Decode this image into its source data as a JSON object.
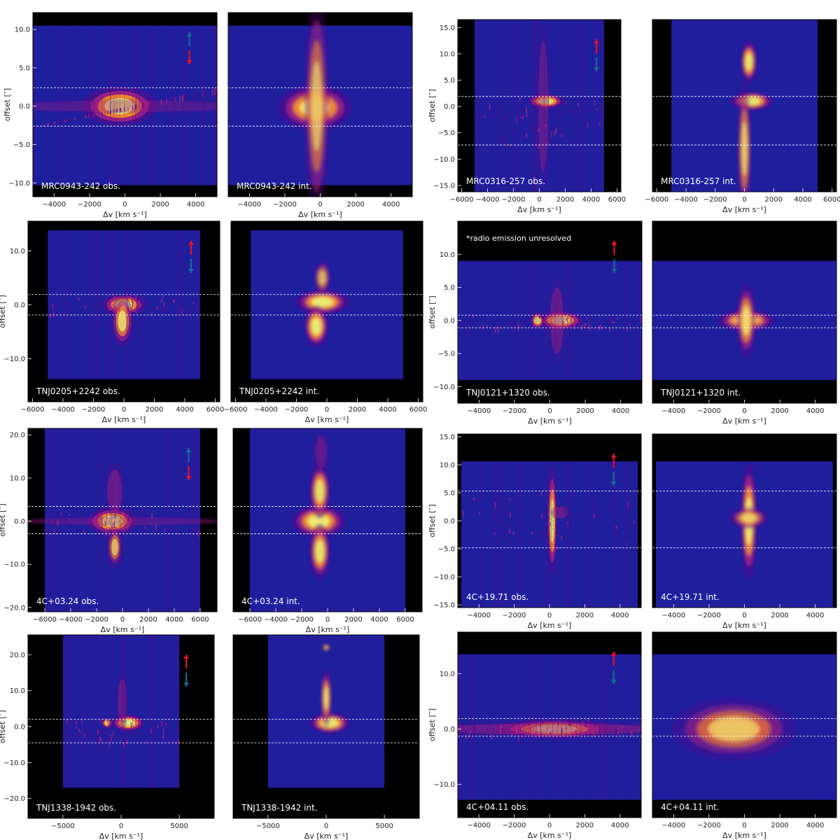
{
  "colors": {
    "background": "#000000",
    "cube": "#1f1f9e",
    "dim": "#5a0a8a",
    "mid": "#c0267a",
    "bright": "#ff9a1a",
    "peak": "#f4f47a",
    "contour": "#70c060",
    "aperture": "#ffffff",
    "arrow_red": "#e3102b",
    "arrow_blue": "#136a99"
  },
  "tick_labels": {
    "xlabel": "Δv [km s⁻¹]",
    "ylabel": "offset [″]"
  },
  "chart_data": [
    {
      "type": "heatmap",
      "panel": "obs",
      "label": "MRC0943-242 obs.",
      "xlabel": "Δv [km s⁻¹]",
      "ylabel": "offset [″]",
      "xlim": [
        -5200,
        5200
      ],
      "ylim": [
        -11.8,
        12.2
      ],
      "xticks": [
        -4000,
        -2000,
        0,
        2000,
        4000
      ],
      "yticks": [
        -10,
        -5,
        0,
        5,
        10
      ],
      "data_x": [
        -5200,
        5200
      ],
      "data_y": [
        -10.3,
        10.5
      ],
      "aperture": [
        -2.6,
        2.4
      ],
      "arrows": "blue-up,red-down",
      "style": "scatter",
      "emission": [
        {
          "v": -300,
          "o": 0,
          "sv": 1300,
          "so": 1.6,
          "a": 1
        },
        {
          "v": 0,
          "o": 0,
          "sv": 5000,
          "so": 0.6,
          "a": 0.35
        }
      ]
    },
    {
      "type": "heatmap",
      "panel": "int",
      "label": "MRC0943-242 int.",
      "xlabel": "Δv [km s⁻¹]",
      "xlim": [
        -5200,
        5200
      ],
      "ylim": [
        -11.8,
        12.2
      ],
      "xticks": [
        -4000,
        -2000,
        0,
        2000,
        4000
      ],
      "data_x": [
        -5200,
        5200
      ],
      "data_y": [
        -10.3,
        10.5
      ],
      "aperture": [
        -2.6,
        2.4
      ],
      "style": "smooth",
      "emission": [
        {
          "v": -300,
          "o": -0.2,
          "sv": 1300,
          "so": 1.8,
          "a": 1
        },
        {
          "v": -200,
          "o": 0,
          "sv": 450,
          "so": 9,
          "a": 0.6
        }
      ]
    },
    {
      "type": "heatmap",
      "panel": "obs",
      "label": "MRC0316-257 obs.",
      "xlabel": "Δv [km s⁻¹]",
      "ylabel": "offset [″]",
      "xlim": [
        -6300,
        6300
      ],
      "ylim": [
        -16.2,
        16.5
      ],
      "xticks": [
        -6000,
        -4000,
        -2000,
        0,
        2000,
        4000,
        6000
      ],
      "yticks": [
        -15,
        -10,
        -5,
        0,
        5,
        10,
        15
      ],
      "data_x": [
        -5000,
        5000
      ],
      "data_y": [
        -16.2,
        16.5
      ],
      "aperture": [
        -7.3,
        1.9
      ],
      "arrows": "red-up,blue-down",
      "style": "scatter",
      "emission": [
        {
          "v": 500,
          "o": 1,
          "sv": 900,
          "so": 0.9,
          "a": 1
        },
        {
          "v": 300,
          "o": 0,
          "sv": 300,
          "so": 10,
          "a": 0.45
        }
      ]
    },
    {
      "type": "heatmap",
      "panel": "int",
      "label": "MRC0316-257 int.",
      "xlabel": "Δv [km s⁻¹]",
      "xlim": [
        -6300,
        6300
      ],
      "ylim": [
        -16.2,
        16.5
      ],
      "xticks": [
        -6000,
        -4000,
        -2000,
        0,
        2000,
        4000,
        6000
      ],
      "data_x": [
        -5000,
        5000
      ],
      "data_y": [
        -16.2,
        16.5
      ],
      "aperture": [
        -7.3,
        1.9
      ],
      "style": "smooth",
      "emission": [
        {
          "v": 500,
          "o": 1,
          "sv": 900,
          "so": 1.1,
          "a": 1
        },
        {
          "v": 300,
          "o": 8.5,
          "sv": 350,
          "so": 2.5,
          "a": 1
        },
        {
          "v": 0,
          "o": -8,
          "sv": 300,
          "so": 8,
          "a": 0.7
        }
      ]
    },
    {
      "type": "heatmap",
      "panel": "obs",
      "label": "TNJ0205+2242 obs.",
      "xlabel": "Δv [km s⁻¹]",
      "ylabel": "offset [″]",
      "xlim": [
        -6300,
        6300
      ],
      "ylim": [
        -18,
        15.5
      ],
      "xticks": [
        -6000,
        -4000,
        -2000,
        0,
        2000,
        4000,
        6000
      ],
      "yticks": [
        -10,
        0,
        10
      ],
      "data_x": [
        -5000,
        5000
      ],
      "data_y": [
        -13.8,
        13.8
      ],
      "aperture": [
        -1.9,
        1.9
      ],
      "arrows": "red-up,blue-down",
      "style": "scatter",
      "emission": [
        {
          "v": 0,
          "o": 0,
          "sv": 900,
          "so": 1.3,
          "a": 1
        },
        {
          "v": -100,
          "o": -3,
          "sv": 450,
          "so": 3,
          "a": 0.75
        }
      ]
    },
    {
      "type": "heatmap",
      "panel": "int",
      "label": "TNJ0205+2242 int.",
      "xlabel": "Δv [km s⁻¹]",
      "xlim": [
        -6300,
        6300
      ],
      "ylim": [
        -18,
        15.5
      ],
      "xticks": [
        -6000,
        -4000,
        -2000,
        0,
        2000,
        4000,
        6000
      ],
      "data_x": [
        -5000,
        5000
      ],
      "data_y": [
        -13.8,
        13.8
      ],
      "aperture": [
        -1.9,
        1.9
      ],
      "style": "smooth",
      "emission": [
        {
          "v": -300,
          "o": 0.5,
          "sv": 1100,
          "so": 1.4,
          "a": 1
        },
        {
          "v": -700,
          "o": -4,
          "sv": 500,
          "so": 2.4,
          "a": 1
        },
        {
          "v": -300,
          "o": 5,
          "sv": 350,
          "so": 2,
          "a": 0.6
        }
      ]
    },
    {
      "type": "heatmap",
      "panel": "obs",
      "label": "TNJ0121+1320 obs.",
      "xlabel": "Δv [km s⁻¹]",
      "ylabel": "offset [″]",
      "annotation": "*radio emission unresolved",
      "xlim": [
        -5200,
        5200
      ],
      "ylim": [
        -12.5,
        15
      ],
      "xticks": [
        -4000,
        -2000,
        0,
        2000,
        4000
      ],
      "yticks": [
        -10,
        -5,
        0,
        5,
        10
      ],
      "data_x": [
        -5200,
        5200
      ],
      "data_y": [
        -9,
        9
      ],
      "aperture": [
        -1.1,
        0.8
      ],
      "arrows": "red-up,blue-down",
      "style": "scatter",
      "emission": [
        {
          "v": 600,
          "o": 0,
          "sv": 800,
          "so": 0.9,
          "a": 1
        },
        {
          "v": -700,
          "o": 0,
          "sv": 250,
          "so": 0.8,
          "a": 0.9
        },
        {
          "v": 400,
          "o": 0,
          "sv": 300,
          "so": 4,
          "a": 0.5
        }
      ]
    },
    {
      "type": "heatmap",
      "panel": "int",
      "label": "TNJ0121+1320 int.",
      "xlabel": "Δv [km s⁻¹]",
      "xlim": [
        -5200,
        5200
      ],
      "ylim": [
        -12.5,
        15
      ],
      "xticks": [
        -4000,
        -2000,
        0,
        2000,
        4000
      ],
      "data_x": [
        -5200,
        5200
      ],
      "data_y": [
        -9,
        9
      ],
      "aperture": [
        -1.1,
        0.8
      ],
      "style": "smooth",
      "emission": [
        {
          "v": 100,
          "o": 0,
          "sv": 1000,
          "so": 1,
          "a": 1
        },
        {
          "v": 100,
          "o": 0,
          "sv": 350,
          "so": 3.5,
          "a": 0.8
        }
      ]
    },
    {
      "type": "heatmap",
      "panel": "obs",
      "label": "4C+03.24 obs.",
      "xlabel": "Δv [km s⁻¹]",
      "ylabel": "offset [″]",
      "xlim": [
        -7300,
        7300
      ],
      "ylim": [
        -21,
        21.5
      ],
      "xticks": [
        -6000,
        -4000,
        -2000,
        0,
        2000,
        4000,
        6000
      ],
      "yticks": [
        -20,
        -10,
        0,
        10,
        20
      ],
      "data_x": [
        -6000,
        6000
      ],
      "data_y": [
        -21,
        21.5
      ],
      "aperture": [
        -2.9,
        3.4
      ],
      "arrows": "blue-up,red-down",
      "style": "scatter",
      "emission": [
        {
          "v": -800,
          "o": 0,
          "sv": 1200,
          "so": 2,
          "a": 1
        },
        {
          "v": -600,
          "o": 7,
          "sv": 450,
          "so": 4,
          "a": 0.55
        },
        {
          "v": -600,
          "o": -6,
          "sv": 400,
          "so": 3,
          "a": 0.6
        },
        {
          "v": 0,
          "o": 0,
          "sv": 6000,
          "so": 0.7,
          "a": 0.35
        }
      ]
    },
    {
      "type": "heatmap",
      "panel": "int",
      "label": "4C+03.24 int.",
      "xlabel": "Δv [km s⁻¹]",
      "xlim": [
        -7300,
        7300
      ],
      "ylim": [
        -21,
        21.5
      ],
      "xticks": [
        -6000,
        -4000,
        -2000,
        0,
        2000,
        4000,
        6000
      ],
      "data_x": [
        -6000,
        6000
      ],
      "data_y": [
        -21,
        21.5
      ],
      "aperture": [
        -2.9,
        3.4
      ],
      "style": "smooth",
      "emission": [
        {
          "v": -700,
          "o": 0,
          "sv": 1300,
          "so": 2.3,
          "a": 1
        },
        {
          "v": -600,
          "o": 7,
          "sv": 500,
          "so": 4,
          "a": 0.9
        },
        {
          "v": -600,
          "o": -7,
          "sv": 500,
          "so": 4,
          "a": 0.95
        },
        {
          "v": -500,
          "o": 16,
          "sv": 350,
          "so": 3,
          "a": 0.5
        }
      ]
    },
    {
      "type": "heatmap",
      "panel": "obs",
      "label": "4C+19.71 obs.",
      "xlabel": "Δv [km s⁻¹]",
      "ylabel": "offset [″]",
      "xlim": [
        -5200,
        5200
      ],
      "ylim": [
        -15.5,
        15.5
      ],
      "xticks": [
        -4000,
        -2000,
        0,
        2000,
        4000
      ],
      "yticks": [
        -15,
        -10,
        -5,
        0,
        5,
        10,
        15
      ],
      "data_x": [
        -5000,
        5000
      ],
      "data_y": [
        -15.5,
        10.6
      ],
      "aperture": [
        -4.8,
        5.3
      ],
      "arrows": "red-up,blue-down",
      "style": "scatter",
      "emission": [
        {
          "v": 150,
          "o": 0,
          "sv": 180,
          "so": 6,
          "a": 0.9
        },
        {
          "v": 600,
          "o": 1.5,
          "sv": 350,
          "so": 0.8,
          "a": 0.5
        }
      ]
    },
    {
      "type": "heatmap",
      "panel": "int",
      "label": "4C+19.71 int.",
      "xlabel": "Δv [km s⁻¹]",
      "xlim": [
        -5200,
        5200
      ],
      "ylim": [
        -15.5,
        15.5
      ],
      "xticks": [
        -4000,
        -2000,
        0,
        2000,
        4000
      ],
      "data_x": [
        -5000,
        5000
      ],
      "data_y": [
        -15.5,
        10.6
      ],
      "aperture": [
        -4.8,
        5.3
      ],
      "style": "smooth",
      "emission": [
        {
          "v": 250,
          "o": 0,
          "sv": 280,
          "so": 6.5,
          "a": 1
        },
        {
          "v": 250,
          "o": 0.5,
          "sv": 700,
          "so": 1.2,
          "a": 0.7
        }
      ]
    },
    {
      "type": "heatmap",
      "panel": "obs",
      "label": "TNJ1338-1942 obs.",
      "xlabel": "Δv [km s⁻¹]",
      "ylabel": "offset [″]",
      "xlim": [
        -8000,
        8000
      ],
      "ylim": [
        -25.5,
        25.5
      ],
      "xticks": [
        -5000,
        0,
        5000
      ],
      "yticks": [
        -20,
        -10,
        0,
        10,
        20
      ],
      "data_x": [
        -5000,
        5000
      ],
      "data_y": [
        -17,
        25.5
      ],
      "aperture": [
        -4.5,
        2
      ],
      "arrows": "red-up,blue-down",
      "style": "scatter",
      "emission": [
        {
          "v": 600,
          "o": 1,
          "sv": 900,
          "so": 1.5,
          "a": 1
        },
        {
          "v": 100,
          "o": 7,
          "sv": 300,
          "so": 5,
          "a": 0.5
        },
        {
          "v": -1200,
          "o": 1,
          "sv": 300,
          "so": 1,
          "a": 0.8
        }
      ]
    },
    {
      "type": "heatmap",
      "panel": "int",
      "label": "TNJ1338-1942 int.",
      "xlabel": "Δv [km s⁻¹]",
      "xlim": [
        -8000,
        8000
      ],
      "ylim": [
        -25.5,
        25.5
      ],
      "xticks": [
        -5000,
        0,
        5000
      ],
      "data_x": [
        -5000,
        5000
      ],
      "data_y": [
        -17,
        25.5
      ],
      "aperture": [
        -4.5,
        2
      ],
      "style": "smooth",
      "emission": [
        {
          "v": 300,
          "o": 1,
          "sv": 1100,
          "so": 1.8,
          "a": 1
        },
        {
          "v": 0,
          "o": 8,
          "sv": 300,
          "so": 5,
          "a": 0.8
        },
        {
          "v": 0,
          "o": 22,
          "sv": 250,
          "so": 0.7,
          "a": 0.6
        }
      ]
    },
    {
      "type": "heatmap",
      "panel": "obs",
      "label": "4C+04.11 obs.",
      "xlabel": "Δv [km s⁻¹]",
      "ylabel": "offset [″]",
      "xlim": [
        -5200,
        5200
      ],
      "ylim": [
        -16,
        17.5
      ],
      "xticks": [
        -4000,
        -2000,
        0,
        2000,
        4000
      ],
      "yticks": [
        -10,
        0,
        10
      ],
      "data_x": [
        -5200,
        5200
      ],
      "data_y": [
        -12.8,
        13.5
      ],
      "aperture": [
        -1.3,
        1.9
      ],
      "arrows": "red-up,blue-down",
      "style": "scatter",
      "emission": [
        {
          "v": 300,
          "o": 0,
          "sv": 2000,
          "so": 1.1,
          "a": 1
        },
        {
          "v": 0,
          "o": 0,
          "sv": 5000,
          "so": 0.8,
          "a": 0.55
        }
      ]
    },
    {
      "type": "heatmap",
      "panel": "int",
      "label": "4C+04.11 int.",
      "xlabel": "Δv [km s⁻¹]",
      "xlim": [
        -5200,
        5200
      ],
      "ylim": [
        -16,
        17.5
      ],
      "xticks": [
        -4000,
        -2000,
        0,
        2000,
        4000
      ],
      "data_x": [
        -5200,
        5200
      ],
      "data_y": [
        -12.8,
        13.5
      ],
      "aperture": [
        -1.3,
        1.9
      ],
      "style": "smooth",
      "emission": [
        {
          "v": -600,
          "o": 0,
          "sv": 1600,
          "so": 1.9,
          "a": 1
        },
        {
          "v": -600,
          "o": 0,
          "sv": 2200,
          "so": 3.5,
          "a": 0.6
        }
      ]
    }
  ]
}
